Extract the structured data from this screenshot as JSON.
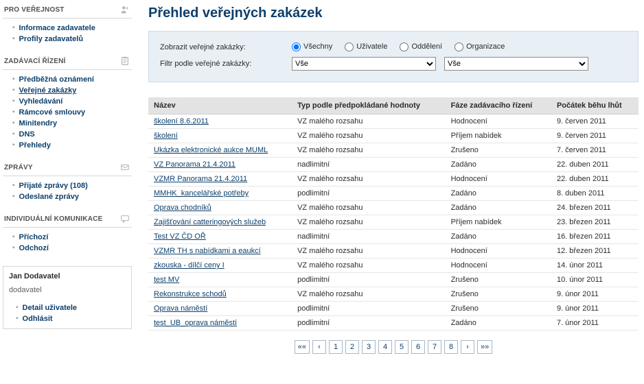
{
  "sidebar": {
    "sections": [
      {
        "title": "PRO VEŘEJNOST",
        "icon": "people-icon",
        "items": [
          {
            "label": "Informace zadavatele",
            "bold": true
          },
          {
            "label": "Profily zadavatelů",
            "bold": true
          }
        ]
      },
      {
        "title": "ZADÁVACÍ ŘÍZENÍ",
        "icon": "clipboard-icon",
        "items": [
          {
            "label": "Předběžná oznámení",
            "bold": true
          },
          {
            "label": "Veřejné zakázky",
            "bold": true,
            "underline": true
          },
          {
            "label": "Vyhledávání",
            "bold": true
          },
          {
            "label": "Rámcové smlouvy",
            "bold": true
          },
          {
            "label": "Minitendry",
            "bold": true
          },
          {
            "label": "DNS",
            "bold": true
          },
          {
            "label": "Přehledy",
            "bold": true
          }
        ]
      },
      {
        "title": "ZPRÁVY",
        "icon": "mail-icon",
        "items": [
          {
            "label": "Přijaté zprávy (108)",
            "bold": true
          },
          {
            "label": "Odeslané zprávy",
            "bold": true
          }
        ]
      },
      {
        "title": "INDIVIDUÁLNÍ KOMUNIKACE",
        "icon": "chat-icon",
        "items": [
          {
            "label": "Příchozí",
            "bold": true
          },
          {
            "label": "Odchozí",
            "bold": true
          }
        ]
      }
    ],
    "user": {
      "name": "Jan Dodavatel",
      "role": "dodavatel",
      "items": [
        {
          "label": "Detail uživatele",
          "bold": true
        },
        {
          "label": "Odhlásit",
          "bold": true
        }
      ]
    }
  },
  "page": {
    "title": "Přehled veřejných zakázek"
  },
  "filter": {
    "show_label": "Zobrazit veřejné zakázky:",
    "filter_label": "Filtr podle veřejné zakázky:",
    "radios": [
      {
        "label": "Všechny",
        "checked": true
      },
      {
        "label": "Uživatele",
        "checked": false
      },
      {
        "label": "Oddělení",
        "checked": false
      },
      {
        "label": "Organizace",
        "checked": false
      }
    ],
    "select1": {
      "value": "Vše",
      "options": [
        "Vše"
      ]
    },
    "select2": {
      "value": "Vše",
      "options": [
        "Vše"
      ]
    }
  },
  "table": {
    "columns": [
      "Název",
      "Typ podle předpokládané hodnoty",
      "Fáze zadávacího řízení",
      "Počátek běhu lhůt"
    ],
    "rows": [
      {
        "name": "školení 8.6.2011",
        "type": "VZ malého rozsahu",
        "phase": "Hodnocení",
        "date": "9. červen 2011"
      },
      {
        "name": "školení",
        "type": "VZ malého rozsahu",
        "phase": "Příjem nabídek",
        "date": "9. červen 2011"
      },
      {
        "name": "Ukázka elektronické aukce MUML",
        "type": "VZ malého rozsahu",
        "phase": "Zrušeno",
        "date": "7. červen 2011"
      },
      {
        "name": "VZ Panorama 21.4.2011",
        "type": "nadlimitní",
        "phase": "Zadáno",
        "date": "22. duben 2011"
      },
      {
        "name": "VZMR Panorama 21.4.2011",
        "type": "VZ malého rozsahu",
        "phase": "Hodnocení",
        "date": "22. duben 2011"
      },
      {
        "name": "MMHK_kancelářské potřeby",
        "type": "podlimitní",
        "phase": "Zadáno",
        "date": "8. duben 2011"
      },
      {
        "name": "Oprava chodníků",
        "type": "VZ malého rozsahu",
        "phase": "Zadáno",
        "date": "24. březen 2011"
      },
      {
        "name": "Zajišťování catteringových služeb",
        "type": "VZ malého rozsahu",
        "phase": "Příjem nabídek",
        "date": "23. březen 2011"
      },
      {
        "name": "Test VZ ČD OŘ",
        "type": "nadlimitní",
        "phase": "Zadáno",
        "date": "16. březen 2011"
      },
      {
        "name": "VZMR TH s nabídkami a eaukcí",
        "type": "VZ malého rozsahu",
        "phase": "Hodnocení",
        "date": "12. březen 2011"
      },
      {
        "name": "zkouska - dílčí ceny  I",
        "type": "VZ malého rozsahu",
        "phase": "Hodnocení",
        "date": "14. únor 2011"
      },
      {
        "name": "test MV",
        "type": "podlimitní",
        "phase": "Zrušeno",
        "date": "10. únor 2011"
      },
      {
        "name": "Rekonstrukce schodů",
        "type": "VZ malého rozsahu",
        "phase": "Zrušeno",
        "date": "9. únor 2011"
      },
      {
        "name": "Oprava náměstí",
        "type": "podlimitní",
        "phase": "Zrušeno",
        "date": "9. únor 2011"
      },
      {
        "name": "test_UB_oprava náměstí",
        "type": "podlimitní",
        "phase": "Zadáno",
        "date": "7. únor 2011"
      }
    ]
  },
  "pager": {
    "first": "««",
    "prev": "‹",
    "next": "›",
    "last": "»»",
    "pages": [
      1,
      2,
      3,
      4,
      5,
      6,
      7,
      8
    ],
    "current": 3
  },
  "colors": {
    "link": "#0d3f6b",
    "header_bg": "#e3e3e3",
    "filter_bg": "#e8eff5",
    "pager_current_bg": "#2f6aa3"
  }
}
